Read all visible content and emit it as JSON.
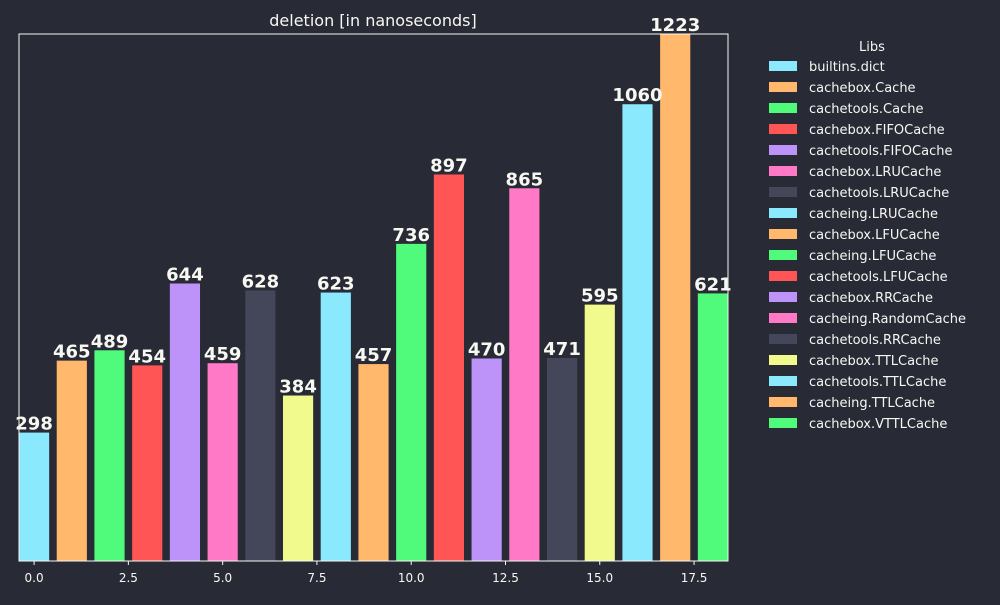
{
  "chart_data": {
    "type": "bar",
    "title": "deletion [in nanoseconds]",
    "xlabel": "",
    "ylabel": "",
    "xlim": [
      -0.4,
      18.4
    ],
    "ylim": [
      0,
      1223
    ],
    "x_ticks": [
      "0.0",
      "2.5",
      "5.0",
      "7.5",
      "10.0",
      "12.5",
      "15.0",
      "17.5"
    ],
    "grid": false,
    "legend": {
      "title": "Libs",
      "placement": "right"
    },
    "series": [
      {
        "name": "builtins.dict",
        "x": 0,
        "value": 298,
        "color": "#8be9fd"
      },
      {
        "name": "cachebox.Cache",
        "x": 1,
        "value": 465,
        "color": "#ffb86c"
      },
      {
        "name": "cachetools.Cache",
        "x": 2,
        "value": 489,
        "color": "#50fa7b"
      },
      {
        "name": "cachebox.FIFOCache",
        "x": 3,
        "value": 454,
        "color": "#ff5555"
      },
      {
        "name": "cachetools.FIFOCache",
        "x": 4,
        "value": 644,
        "color": "#bd93f9"
      },
      {
        "name": "cachebox.LRUCache",
        "x": 5,
        "value": 459,
        "color": "#ff79c6"
      },
      {
        "name": "cachetools.LRUCache",
        "x": 6,
        "value": 628,
        "color": "#44475a"
      },
      {
        "name": "cacheing.LRUCache",
        "x": 8,
        "value": 623,
        "color": "#8be9fd"
      },
      {
        "name": "cachebox.LFUCache",
        "x": 9,
        "value": 457,
        "color": "#ffb86c"
      },
      {
        "name": "cacheing.LFUCache",
        "x": 10,
        "value": 736,
        "color": "#50fa7b"
      },
      {
        "name": "cachetools.LFUCache",
        "x": 11,
        "value": 897,
        "color": "#ff5555"
      },
      {
        "name": "cachebox.RRCache",
        "x": 12,
        "value": 470,
        "color": "#bd93f9"
      },
      {
        "name": "cacheing.RandomCache",
        "x": 13,
        "value": 865,
        "color": "#ff79c6"
      },
      {
        "name": "cachetools.RRCache",
        "x": 14,
        "value": 471,
        "color": "#44475a"
      },
      {
        "name": "cachebox.TTLCache",
        "x": 7,
        "value": 384,
        "color": "#f1fa8c"
      },
      {
        "name": "cachetools.TTLCache",
        "x": 16,
        "value": 1060,
        "color": "#8be9fd"
      },
      {
        "name": "cacheing.TTLCache",
        "x": 17,
        "value": 1223,
        "color": "#ffb86c"
      },
      {
        "name": "cachebox.VTTLCache",
        "x": 18,
        "value": 621,
        "color": "#50fa7b"
      }
    ],
    "extra_bars": [
      {
        "x": 15,
        "value": 595,
        "color": "#f1fa8c"
      }
    ]
  },
  "colors": {
    "background": "#282a36",
    "foreground": "#f8f8f2"
  }
}
